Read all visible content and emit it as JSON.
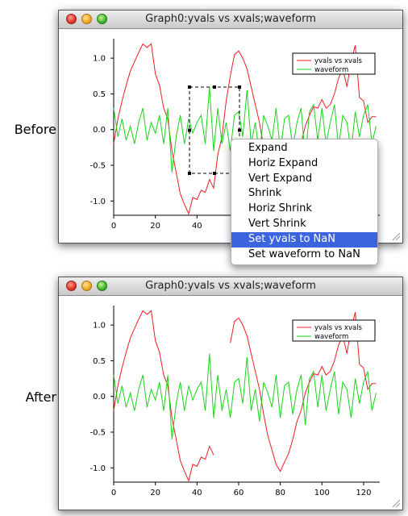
{
  "labels": {
    "before": "Before",
    "after": "After"
  },
  "window_title": "Graph0:yvals vs xvals;waveform",
  "legend": {
    "series1": "yvals vs xvals",
    "series2": "waveform"
  },
  "colors": {
    "series1": "#ee1c24",
    "series2": "#18d41a",
    "menu_highlight": "#3d64df"
  },
  "axes": {
    "x_ticks": [
      0,
      20,
      40,
      60,
      80,
      100,
      120
    ],
    "y_ticks": [
      "1.0",
      "0.5",
      "0.0",
      "-0.5",
      "-1.0"
    ],
    "x_range": [
      0,
      127
    ],
    "y_range": [
      -1.2,
      1.25
    ]
  },
  "menu": {
    "items": [
      "Expand",
      "Horiz Expand",
      "Vert Expand",
      "Shrink",
      "Horiz Shrink",
      "Vert Shrink",
      "Set yvals to NaN",
      "Set waveform to NaN"
    ],
    "selected_index": 6
  },
  "chart_data": {
    "type": "line",
    "series": [
      {
        "name": "yvals vs xvals",
        "x": [
          0,
          2,
          4,
          6,
          8,
          10,
          12,
          14,
          16,
          18,
          20,
          22,
          24,
          26,
          28,
          30,
          32,
          34,
          36,
          38,
          40,
          42,
          44,
          46,
          48,
          50,
          52,
          54,
          56,
          58,
          60,
          62,
          64,
          66,
          68,
          70,
          72,
          74,
          76,
          78,
          80,
          82,
          84,
          86,
          88,
          90,
          92,
          94,
          96,
          98,
          100,
          102,
          104,
          106,
          108,
          110,
          112,
          114,
          116,
          118,
          120,
          122,
          124,
          126
        ],
        "y": [
          -0.2,
          0.15,
          0.4,
          0.62,
          0.82,
          0.95,
          1.08,
          1.2,
          1.15,
          1.2,
          0.78,
          0.62,
          0.3,
          0.15,
          -0.3,
          -0.6,
          -0.9,
          -1.05,
          -1.18,
          -0.95,
          -0.98,
          -0.85,
          -0.88,
          -0.7,
          -0.82,
          -0.35,
          -0.1,
          0.4,
          0.75,
          1.05,
          1.1,
          1.0,
          0.85,
          0.6,
          0.35,
          0.1,
          -0.25,
          -0.55,
          -0.75,
          -0.95,
          -1.05,
          -0.92,
          -0.8,
          -0.6,
          -0.35,
          -0.2,
          0.05,
          0.2,
          0.32,
          0.3,
          0.42,
          0.3,
          0.35,
          0.5,
          0.72,
          0.85,
          0.6,
          0.95,
          1.18,
          0.45,
          0.4,
          0.1,
          0.18,
          0.18
        ]
      },
      {
        "name": "waveform",
        "x": [
          0,
          2,
          4,
          6,
          8,
          10,
          12,
          14,
          16,
          18,
          20,
          22,
          24,
          26,
          28,
          30,
          32,
          34,
          36,
          38,
          40,
          42,
          44,
          46,
          48,
          50,
          52,
          54,
          56,
          58,
          60,
          62,
          64,
          66,
          68,
          70,
          72,
          74,
          76,
          78,
          80,
          82,
          84,
          86,
          88,
          90,
          92,
          94,
          96,
          98,
          100,
          102,
          104,
          106,
          108,
          110,
          112,
          114,
          116,
          118,
          120,
          122,
          124,
          126
        ],
        "y": [
          0.3,
          -0.1,
          0.15,
          -0.15,
          0.05,
          -0.2,
          0.1,
          0.3,
          -0.15,
          0.1,
          -0.05,
          0.2,
          -0.2,
          0.3,
          -0.6,
          -0.1,
          0.2,
          -0.2,
          0.15,
          -0.05,
          0.1,
          0.2,
          -0.2,
          0.6,
          -0.3,
          0.3,
          -0.2,
          0.1,
          -0.3,
          0.2,
          0.25,
          -0.1,
          0.55,
          -0.2,
          0.1,
          -0.35,
          0.2,
          0.05,
          -0.15,
          0.3,
          -0.3,
          0.15,
          0.2,
          -0.25,
          0.1,
          0.3,
          -0.4,
          0.25,
          0.35,
          -0.15,
          0.3,
          -0.2,
          0.1,
          0.35,
          -0.25,
          0.2,
          0.1,
          -0.3,
          0.25,
          -0.1,
          0.2,
          0.35,
          -0.2,
          0.05
        ]
      }
    ],
    "nan_range_series1": [
      48,
      56
    ]
  }
}
